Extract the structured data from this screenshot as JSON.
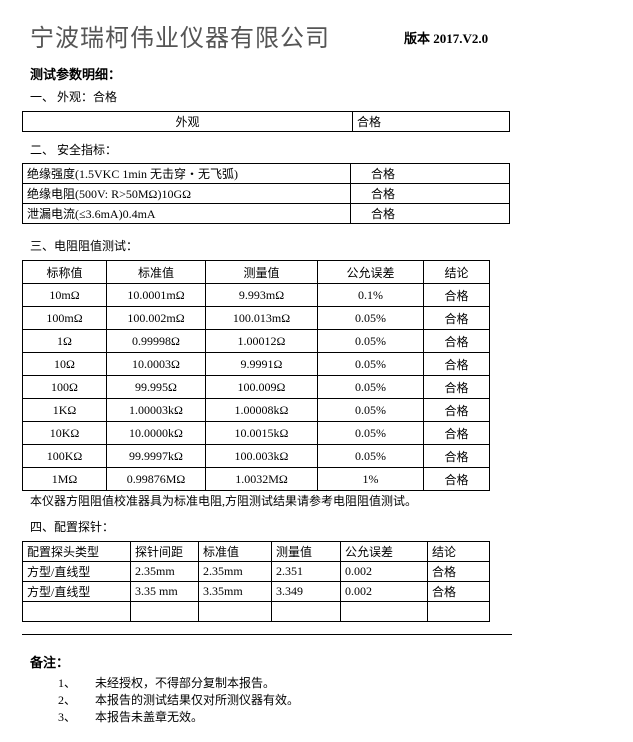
{
  "header": {
    "company": "宁波瑞柯伟业仪器有限公司",
    "version": "版本 2017.V2.0"
  },
  "title": "测试参数明细：",
  "appearance": {
    "heading": "一、 外观：合格",
    "table": {
      "rows": [
        [
          "外观",
          "合格"
        ]
      ]
    }
  },
  "safety": {
    "heading": "二、 安全指标：",
    "table": {
      "rows": [
        [
          "绝缘强度(1.5VKC 1min 无击穿・无飞弧)",
          "合格"
        ],
        [
          "绝缘电阻(500V: R>50MΩ)10GΩ",
          "合格"
        ],
        [
          "泄漏电流(≤3.6mA)0.4mA",
          "合格"
        ]
      ]
    }
  },
  "resistance": {
    "heading": "三、电阻阻值测试：",
    "table": {
      "header": [
        "标称值",
        "标准值",
        "测量值",
        "公允误差",
        "结论"
      ],
      "rows": [
        [
          "10mΩ",
          "10.0001mΩ",
          "9.993mΩ",
          "0.1%",
          "合格"
        ],
        [
          "100mΩ",
          "100.002mΩ",
          "100.013mΩ",
          "0.05%",
          "合格"
        ],
        [
          "1Ω",
          "0.99998Ω",
          "1.00012Ω",
          "0.05%",
          "合格"
        ],
        [
          "10Ω",
          "10.0003Ω",
          "9.9991Ω",
          "0.05%",
          "合格"
        ],
        [
          "100Ω",
          "99.995Ω",
          "100.009Ω",
          "0.05%",
          "合格"
        ],
        [
          "1KΩ",
          "1.00003kΩ",
          "1.00008kΩ",
          "0.05%",
          "合格"
        ],
        [
          "10KΩ",
          "10.0000kΩ",
          "10.0015kΩ",
          "0.05%",
          "合格"
        ],
        [
          "100KΩ",
          "99.9997kΩ",
          "100.003kΩ",
          "0.05%",
          "合格"
        ],
        [
          "1MΩ",
          "0.99876MΩ",
          "1.0032MΩ",
          "1%",
          "合格"
        ]
      ]
    },
    "note": "本仪器方阻阻值校准器具为标准电阻,方阻测试结果请参考电阻阻值测试。"
  },
  "probe": {
    "heading": "四、配置探针：",
    "table": {
      "header": [
        "配置探头类型",
        "探针间距",
        "标准值",
        "测量值",
        "公允误差",
        "结论"
      ],
      "rows": [
        [
          "方型/直线型",
          "2.35mm",
          "2.35mm",
          "2.351",
          "0.002",
          "合格"
        ],
        [
          "方型/直线型",
          "3.35 mm",
          "3.35mm",
          "3.349",
          "0.002",
          "合格"
        ]
      ]
    }
  },
  "remarks": {
    "heading": "备注：",
    "items": [
      [
        "1、",
        "未经授权，不得部分复制本报告。"
      ],
      [
        "2、",
        "本报告的测试结果仅对所测仪器有效。"
      ],
      [
        "3、",
        "本报告未盖章无效。"
      ]
    ]
  }
}
